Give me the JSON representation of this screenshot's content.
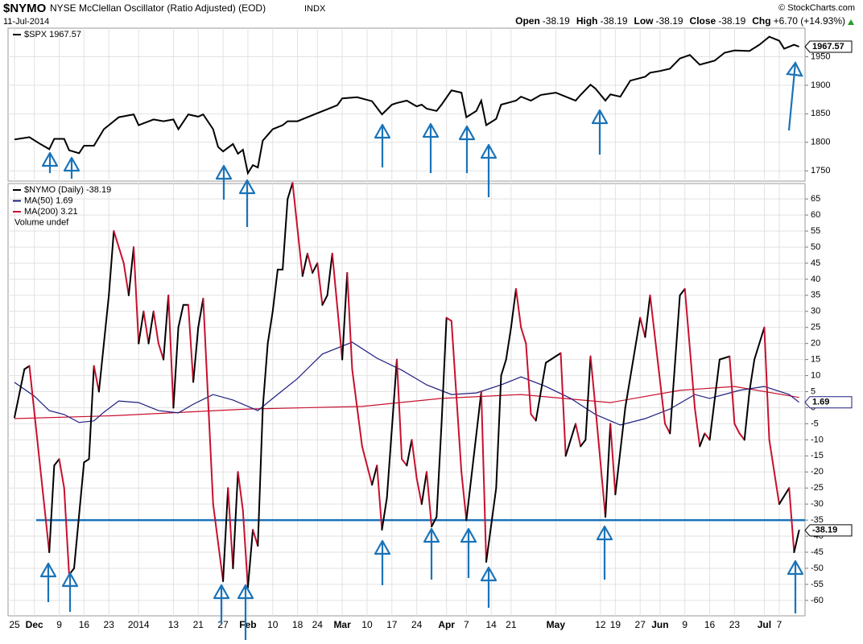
{
  "header": {
    "symbol": "$NYMO",
    "name": "NYSE McClellan Oscillator (Ratio Adjusted) (EOD)",
    "exchange": "INDX",
    "date": "11-Jul-2014",
    "copyright": "© StockCharts.com",
    "stats": [
      {
        "label": "Open",
        "value": "-38.19"
      },
      {
        "label": "High",
        "value": "-38.19"
      },
      {
        "label": "Low",
        "value": "-38.19"
      },
      {
        "label": "Close",
        "value": "-38.19"
      },
      {
        "label": "Chg",
        "value": "+6.70 (+14.93%)"
      }
    ]
  },
  "chart_data": [
    {
      "type": "line",
      "xlim": [
        -1.3,
        159.2
      ],
      "ylim": [
        1732,
        2000
      ],
      "yticks": [
        1750,
        1800,
        1850,
        1900,
        1950
      ],
      "grid": true,
      "series": [
        {
          "name": "$SPX 1967.57",
          "color": "#000000",
          "x": [
            0,
            3,
            5,
            7,
            8,
            10,
            11,
            13,
            14,
            16,
            18,
            21,
            24,
            25,
            28,
            30,
            32,
            33,
            35,
            37,
            38,
            40,
            41,
            42,
            44,
            45,
            46,
            47,
            48,
            49,
            50,
            52,
            54,
            55,
            57,
            59,
            61,
            63,
            65,
            66,
            69,
            72,
            74,
            76,
            77,
            79,
            81,
            82,
            83,
            85,
            86,
            88,
            90,
            91,
            93,
            94,
            95,
            97,
            98,
            101,
            102,
            104,
            106,
            109,
            111,
            113,
            114,
            116,
            117,
            119,
            120,
            122,
            124,
            127,
            128,
            130,
            132,
            134,
            136,
            138,
            141,
            143,
            145,
            148,
            150,
            152,
            154,
            155,
            157,
            158
          ],
          "values": [
            1805,
            1809,
            1798,
            1788,
            1806,
            1806,
            1786,
            1781,
            1794,
            1794,
            1823,
            1844,
            1849,
            1830,
            1840,
            1837,
            1840,
            1823,
            1849,
            1845,
            1849,
            1823,
            1792,
            1784,
            1797,
            1780,
            1787,
            1746,
            1760,
            1756,
            1803,
            1823,
            1830,
            1837,
            1837,
            1844,
            1851,
            1858,
            1865,
            1877,
            1879,
            1872,
            1849,
            1866,
            1869,
            1873,
            1863,
            1866,
            1859,
            1855,
            1866,
            1891,
            1887,
            1844,
            1855,
            1873,
            1830,
            1841,
            1866,
            1873,
            1880,
            1873,
            1883,
            1887,
            1880,
            1873,
            1883,
            1901,
            1894,
            1873,
            1884,
            1880,
            1908,
            1915,
            1922,
            1925,
            1929,
            1947,
            1953,
            1936,
            1943,
            1957,
            1961,
            1960,
            1971,
            1985,
            1978,
            1964,
            1971,
            1967.57
          ]
        }
      ]
    },
    {
      "type": "line",
      "xlim": [
        -1.3,
        159.2
      ],
      "ylim": [
        -64.8,
        69.8
      ],
      "yticks": [
        65,
        60,
        55,
        50,
        45,
        40,
        35,
        30,
        25,
        20,
        15,
        10,
        5,
        0,
        -5,
        -10,
        -15,
        -20,
        -25,
        -30,
        -35,
        -40,
        -45,
        -50,
        -55,
        -60
      ],
      "grid": true,
      "up_color": "#000000",
      "down_color": "#c8102e",
      "hline": {
        "value": -35,
        "color": "#1a73b8"
      },
      "legend_note": "Volume undef",
      "xticks": [
        {
          "value": 0,
          "label": "25"
        },
        {
          "value": 4,
          "label": "Dec"
        },
        {
          "value": 9,
          "label": "9"
        },
        {
          "value": 14,
          "label": "16"
        },
        {
          "value": 19,
          "label": "23"
        },
        {
          "value": 25,
          "label": "2014"
        },
        {
          "value": 32,
          "label": "13"
        },
        {
          "value": 37,
          "label": "21"
        },
        {
          "value": 42,
          "label": "27"
        },
        {
          "value": 47,
          "label": "Feb"
        },
        {
          "value": 52,
          "label": "10"
        },
        {
          "value": 57,
          "label": "18"
        },
        {
          "value": 61,
          "label": "24"
        },
        {
          "value": 66,
          "label": "Mar"
        },
        {
          "value": 71,
          "label": "10"
        },
        {
          "value": 76,
          "label": "17"
        },
        {
          "value": 81,
          "label": "24"
        },
        {
          "value": 87,
          "label": "Apr"
        },
        {
          "value": 91,
          "label": "7"
        },
        {
          "value": 96,
          "label": "14"
        },
        {
          "value": 100,
          "label": "21"
        },
        {
          "value": 109,
          "label": "May"
        },
        {
          "value": 118,
          "label": "12"
        },
        {
          "value": 121,
          "label": "19"
        },
        {
          "value": 126,
          "label": "27"
        },
        {
          "value": 130,
          "label": "Jun"
        },
        {
          "value": 135,
          "label": "9"
        },
        {
          "value": 140,
          "label": "16"
        },
        {
          "value": 145,
          "label": "23"
        },
        {
          "value": 151,
          "label": "Jul"
        },
        {
          "value": 154,
          "label": "7"
        }
      ],
      "series": [
        {
          "name": "$NYMO (Daily) -38.19",
          "color": "#000000",
          "x": [
            0,
            2,
            3,
            7,
            8,
            9,
            10,
            11,
            12,
            14,
            15,
            16,
            17,
            19,
            20,
            22,
            23,
            24,
            25,
            26,
            27,
            28,
            29,
            30,
            31,
            32,
            33,
            34,
            35,
            36,
            37,
            38,
            40,
            42,
            43,
            44,
            45,
            46,
            47,
            48,
            49,
            50,
            51,
            52,
            53,
            54,
            55,
            56,
            58,
            59,
            60,
            61,
            62,
            63,
            64,
            66,
            67,
            68,
            70,
            72,
            73,
            74,
            75,
            77,
            78,
            79,
            80,
            81,
            82,
            83,
            84,
            85,
            86,
            87,
            88,
            90,
            91,
            94,
            95,
            97,
            98,
            99,
            100,
            101,
            102,
            103,
            104,
            105,
            107,
            108,
            110,
            111,
            113,
            114,
            115,
            116,
            117,
            119,
            120,
            121,
            123,
            126,
            127,
            128,
            131,
            132,
            134,
            135,
            137,
            138,
            139,
            140,
            142,
            144,
            145,
            146,
            147,
            148,
            149,
            151,
            152,
            154,
            156,
            157,
            158
          ],
          "values": [
            -3,
            12,
            13,
            -45,
            -18,
            -16,
            -25,
            -52,
            -50,
            -17,
            -16,
            13,
            5,
            35,
            55,
            45,
            35,
            50,
            20,
            30,
            20,
            30,
            20,
            15,
            35,
            0,
            25,
            32,
            32,
            8,
            25,
            34,
            -30,
            -54,
            -25,
            -50,
            -20,
            -32,
            -56,
            -38,
            -43,
            0,
            20,
            30,
            43,
            43,
            65,
            70,
            41,
            48,
            42,
            45,
            32,
            35,
            48,
            15,
            42,
            12,
            -12,
            -24,
            -18,
            -38,
            -28,
            15,
            -16,
            -18,
            -10,
            -22,
            -30,
            -20,
            -37,
            -34,
            -5,
            28,
            27,
            -20,
            -35,
            5,
            -48,
            -25,
            10,
            15,
            25,
            37,
            25,
            20,
            -2,
            -4,
            14,
            15,
            17,
            -15,
            -5,
            -12,
            -10,
            16,
            0,
            -34,
            -5,
            -27,
            0,
            28,
            22,
            35,
            -5,
            -8,
            35,
            37,
            0,
            -12,
            -8,
            -10,
            15,
            16,
            -5,
            -8,
            -10,
            5,
            15,
            25,
            -10,
            -30,
            -25,
            -45,
            -38.19
          ]
        },
        {
          "name": "MA(50) 1.69",
          "color": "#1c1c80",
          "x": [
            0,
            4,
            7,
            10,
            13,
            16,
            18,
            21,
            25,
            29,
            33,
            36,
            40,
            44,
            49,
            52,
            57,
            62,
            68,
            73,
            78,
            83,
            88,
            93,
            98,
            102,
            107,
            112,
            117,
            122,
            127,
            132,
            137,
            140,
            146,
            151,
            156,
            158
          ],
          "values": [
            7.9,
            3.6,
            -0.9,
            -2.1,
            -4.6,
            -4.1,
            -1.4,
            2.1,
            1.6,
            -0.9,
            -1.6,
            1.1,
            4.1,
            2.4,
            -0.9,
            2.9,
            9.1,
            16.7,
            20.4,
            15.4,
            11.7,
            7.1,
            4.1,
            4.6,
            7.1,
            9.6,
            6.6,
            2.9,
            -2.1,
            -5.4,
            -3.4,
            -0.4,
            4.1,
            2.9,
            5.4,
            6.6,
            4.1,
            1.69
          ]
        },
        {
          "name": "MA(200) 3.21",
          "color": "#c8102e",
          "x": [
            0,
            20,
            47,
            70,
            86,
            102,
            120,
            134,
            145,
            158
          ],
          "values": [
            -3.4,
            -2.5,
            -0.4,
            0.4,
            2.9,
            4.1,
            1.6,
            5.4,
            6.6,
            3.21
          ]
        }
      ]
    }
  ]
}
